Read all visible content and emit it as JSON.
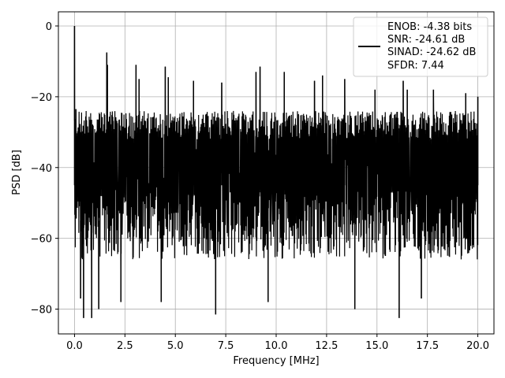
{
  "chart_data": {
    "type": "line",
    "title": "",
    "xlabel": "Frequency [MHz]",
    "ylabel": "PSD [dB]",
    "xlim": [
      -0.8,
      20.8
    ],
    "ylim": [
      -87,
      4
    ],
    "x_ticks": [
      0.0,
      2.5,
      5.0,
      7.5,
      10.0,
      12.5,
      15.0,
      17.5,
      20.0
    ],
    "x_tick_labels": [
      "0.0",
      "2.5",
      "5.0",
      "7.5",
      "10.0",
      "12.5",
      "15.0",
      "17.5",
      "20.0"
    ],
    "y_ticks": [
      0,
      -20,
      -40,
      -60,
      -80
    ],
    "y_tick_labels": [
      "0",
      "−20",
      "−40",
      "−60",
      "−80"
    ],
    "grid": true,
    "legend_position": "top-right",
    "series": [
      {
        "color": "#000000",
        "x_range": [
          0.0,
          20.0
        ],
        "upper_envelope_db": -26,
        "lower_envelope_db": -70,
        "noise_floor_db": -45,
        "peaks": [
          {
            "x": 0.0,
            "y": 0.0
          },
          {
            "x": 0.07,
            "y": -23.5
          },
          {
            "x": 1.6,
            "y": -7.5
          },
          {
            "x": 1.63,
            "y": -11
          },
          {
            "x": 3.05,
            "y": -11.0
          },
          {
            "x": 3.2,
            "y": -15
          },
          {
            "x": 4.5,
            "y": -11.5
          },
          {
            "x": 4.65,
            "y": -14.5
          },
          {
            "x": 5.9,
            "y": -15.5
          },
          {
            "x": 7.3,
            "y": -16
          },
          {
            "x": 9.0,
            "y": -13
          },
          {
            "x": 9.2,
            "y": -11.5
          },
          {
            "x": 10.4,
            "y": -13
          },
          {
            "x": 11.9,
            "y": -15.5
          },
          {
            "x": 12.3,
            "y": -14
          },
          {
            "x": 13.4,
            "y": -15
          },
          {
            "x": 14.9,
            "y": -18
          },
          {
            "x": 16.3,
            "y": -15.5
          },
          {
            "x": 16.5,
            "y": -18
          },
          {
            "x": 17.8,
            "y": -18
          },
          {
            "x": 19.4,
            "y": -19
          },
          {
            "x": 20.0,
            "y": -20
          }
        ],
        "dips": [
          {
            "x": 0.3,
            "y": -77
          },
          {
            "x": 0.45,
            "y": -82.5
          },
          {
            "x": 0.85,
            "y": -82.5
          },
          {
            "x": 1.2,
            "y": -80
          },
          {
            "x": 2.3,
            "y": -78
          },
          {
            "x": 4.3,
            "y": -78
          },
          {
            "x": 7.0,
            "y": -81.5
          },
          {
            "x": 9.6,
            "y": -78
          },
          {
            "x": 13.9,
            "y": -80
          },
          {
            "x": 16.1,
            "y": -82.5
          },
          {
            "x": 17.2,
            "y": -77
          }
        ]
      }
    ],
    "legend": [
      {
        "text": "ENOB: -4.38 bits"
      },
      {
        "text": "SNR: -24.61 dB"
      },
      {
        "text": "SINAD: -24.62 dB"
      },
      {
        "text": "SFDR: 7.44"
      }
    ]
  }
}
